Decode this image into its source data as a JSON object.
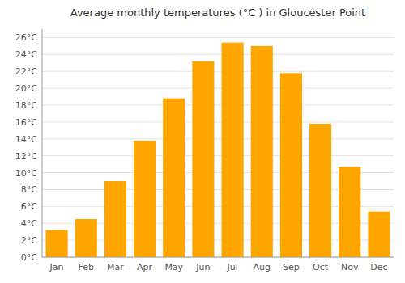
{
  "chart_data": {
    "type": "bar",
    "title": "Average monthly temperatures (°C ) in Gloucester Point",
    "categories": [
      "Jan",
      "Feb",
      "Mar",
      "Apr",
      "May",
      "Jun",
      "Jul",
      "Aug",
      "Sep",
      "Oct",
      "Nov",
      "Dec"
    ],
    "values": [
      3.2,
      4.5,
      9.0,
      13.8,
      18.8,
      23.2,
      25.4,
      25.0,
      21.8,
      15.8,
      10.7,
      5.4
    ],
    "color": "#FFA500",
    "ylim": [
      0,
      27
    ],
    "yticks": [
      {
        "value": 0,
        "label": "0°C"
      },
      {
        "value": 2,
        "label": "2°C"
      },
      {
        "value": 4,
        "label": "4°C"
      },
      {
        "value": 6,
        "label": "6°C"
      },
      {
        "value": 8,
        "label": "8°C"
      },
      {
        "value": 10,
        "label": "10°C"
      },
      {
        "value": 12,
        "label": "12°C"
      },
      {
        "value": 14,
        "label": "14°C"
      },
      {
        "value": 16,
        "label": "16°C"
      },
      {
        "value": 18,
        "label": "18°C"
      },
      {
        "value": 20,
        "label": "20°C"
      },
      {
        "value": 22,
        "label": "22°C"
      },
      {
        "value": 24,
        "label": "24°C"
      },
      {
        "value": 26,
        "label": "26°C"
      }
    ],
    "grid": true
  }
}
